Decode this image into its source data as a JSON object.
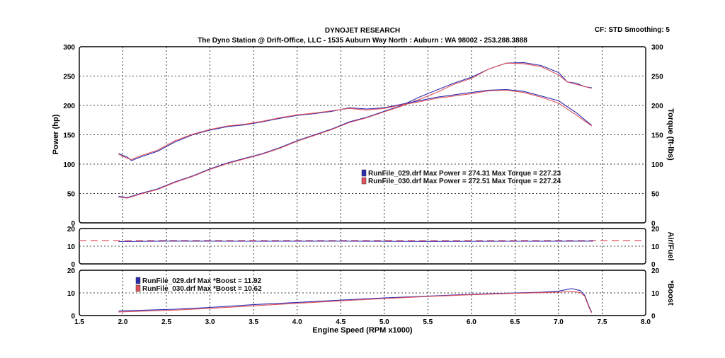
{
  "header": {
    "title": "DYNOJET RESEARCH",
    "subtitle": "The Dyno Station @ Drift-Office, LLC - 1535 Auburn Way North : Auburn : WA 98002 - 253.288.3888",
    "settings": "CF: STD  Smoothing: 5"
  },
  "colors": {
    "run1": "#2b2bb0",
    "run2": "#e0505a",
    "grid": "#000000"
  },
  "chart_data": [
    {
      "type": "line",
      "name": "power-torque",
      "xlabel": "Engine Speed (RPM x1000)",
      "ylabel": "Power (hp)",
      "y2label": "Torque (ft-lbs)",
      "xlim": [
        1.5,
        8.0
      ],
      "ylim": [
        0,
        300
      ],
      "y2lim": [
        0,
        300
      ],
      "xticks": [
        "1.5",
        "2.0",
        "2.5",
        "3.0",
        "3.5",
        "4.0",
        "4.5",
        "5.0",
        "5.5",
        "6.0",
        "6.5",
        "7.0",
        "7.5",
        "8.0"
      ],
      "yticks": [
        "0",
        "50",
        "100",
        "150",
        "200",
        "250",
        "300"
      ],
      "grid": true,
      "legend": [
        {
          "text": "RunFile_029.drf Max Power = 274.31     Max Torque = 227.23",
          "color": "#2b2bb0"
        },
        {
          "text": "RunFile_030.drf Max Power = 272.51     Max Torque = 227.24",
          "color": "#e0505a"
        }
      ],
      "series": [
        {
          "x": [
            1.95,
            2.05,
            2.2,
            2.4,
            2.6,
            2.8,
            3.0,
            3.2,
            3.4,
            3.6,
            3.8,
            4.0,
            4.2,
            4.4,
            4.6,
            4.8,
            5.0,
            5.2,
            5.4,
            5.6,
            5.8,
            6.0,
            6.2,
            6.4,
            6.6,
            6.8,
            7.0,
            7.1,
            7.2,
            7.3,
            7.38
          ],
          "y": [
            45,
            43,
            50,
            58,
            70,
            80,
            92,
            102,
            110,
            118,
            128,
            140,
            150,
            160,
            172,
            180,
            190,
            200,
            214,
            226,
            238,
            248,
            262,
            272,
            273,
            268,
            256,
            240,
            238,
            232,
            230
          ],
          "color": "#2b2bb0"
        },
        {
          "x": [
            1.95,
            2.05,
            2.2,
            2.4,
            2.6,
            2.8,
            3.0,
            3.2,
            3.4,
            3.6,
            3.8,
            4.0,
            4.2,
            4.4,
            4.6,
            4.8,
            5.0,
            5.2,
            5.4,
            5.6,
            5.8,
            6.0,
            6.2,
            6.4,
            6.6,
            6.8,
            7.0,
            7.1,
            7.2,
            7.3,
            7.38
          ],
          "y": [
            44,
            42,
            49,
            57,
            69,
            79,
            91,
            101,
            109,
            117,
            127,
            139,
            149,
            159,
            171,
            179,
            189,
            199,
            210,
            222,
            236,
            246,
            262,
            272,
            271,
            266,
            252,
            240,
            236,
            232,
            229
          ],
          "color": "#e0505a"
        },
        {
          "x": [
            1.95,
            2.05,
            2.1,
            2.2,
            2.4,
            2.6,
            2.8,
            3.0,
            3.2,
            3.4,
            3.6,
            3.8,
            4.0,
            4.2,
            4.4,
            4.6,
            4.8,
            5.0,
            5.2,
            5.4,
            5.6,
            5.8,
            6.0,
            6.2,
            6.4,
            6.6,
            6.8,
            7.0,
            7.2,
            7.38
          ],
          "y": [
            118,
            112,
            106,
            112,
            122,
            138,
            150,
            158,
            164,
            167,
            172,
            178,
            183,
            186,
            190,
            196,
            194,
            196,
            202,
            208,
            214,
            218,
            222,
            226,
            227,
            224,
            216,
            208,
            188,
            166
          ],
          "color": "#2b2bb0"
        },
        {
          "x": [
            1.95,
            2.05,
            2.1,
            2.2,
            2.4,
            2.6,
            2.8,
            3.0,
            3.2,
            3.4,
            3.6,
            3.8,
            4.0,
            4.2,
            4.4,
            4.6,
            4.8,
            5.0,
            5.2,
            5.4,
            5.6,
            5.8,
            6.0,
            6.2,
            6.4,
            6.6,
            6.8,
            7.0,
            7.2,
            7.38
          ],
          "y": [
            117,
            110,
            108,
            114,
            124,
            140,
            151,
            159,
            165,
            168,
            173,
            179,
            184,
            187,
            191,
            195,
            192,
            195,
            201,
            206,
            212,
            216,
            220,
            225,
            226,
            222,
            214,
            204,
            184,
            165
          ],
          "color": "#e0505a"
        }
      ]
    },
    {
      "type": "line",
      "name": "air-fuel",
      "ylabel": "Air/Fuel",
      "xlim": [
        1.5,
        8.0
      ],
      "ylim": [
        0,
        20
      ],
      "yticks": [
        "0",
        "10",
        "20"
      ],
      "series": [
        {
          "x": [
            1.5,
            8.0
          ],
          "y": [
            13.2,
            13.2
          ],
          "color": "#e0505a",
          "dashed": true
        },
        {
          "x": [
            1.95,
            2.5,
            3.5,
            4.5,
            5.5,
            6.5,
            7.4
          ],
          "y": [
            12.6,
            12.9,
            12.8,
            12.9,
            12.7,
            12.8,
            12.9
          ],
          "color": "#2b2bb0"
        }
      ]
    },
    {
      "type": "line",
      "name": "boost",
      "ylabel": "*Boost",
      "xlim": [
        1.5,
        8.0
      ],
      "ylim": [
        0,
        20
      ],
      "yticks": [
        "0",
        "10",
        "20"
      ],
      "legend": [
        {
          "text": "RunFile_029.drf Max *Boost = 11.92",
          "color": "#2b2bb0"
        },
        {
          "text": "RunFile_030.drf Max *Boost = 10.62",
          "color": "#e0505a"
        }
      ],
      "series": [
        {
          "x": [
            1.95,
            2.2,
            2.6,
            3.0,
            3.5,
            4.0,
            4.5,
            5.0,
            5.5,
            6.0,
            6.5,
            6.8,
            7.0,
            7.15,
            7.25,
            7.3,
            7.35,
            7.38
          ],
          "y": [
            2,
            2.3,
            2.8,
            3.6,
            4.8,
            5.8,
            6.8,
            7.8,
            8.6,
            9.4,
            10.0,
            10.3,
            10.8,
            11.9,
            11.0,
            9.0,
            4.0,
            1.5
          ],
          "color": "#2b2bb0"
        },
        {
          "x": [
            1.95,
            2.2,
            2.6,
            3.0,
            3.5,
            4.0,
            4.5,
            5.0,
            5.5,
            6.0,
            6.5,
            6.8,
            7.0,
            7.15,
            7.25,
            7.3,
            7.35,
            7.38
          ],
          "y": [
            1.6,
            1.9,
            2.4,
            3.2,
            4.3,
            5.4,
            6.5,
            7.5,
            8.4,
            9.2,
            9.8,
            10.1,
            10.3,
            10.6,
            10.2,
            8.5,
            3.5,
            1.2
          ],
          "color": "#e0505a"
        }
      ]
    }
  ]
}
